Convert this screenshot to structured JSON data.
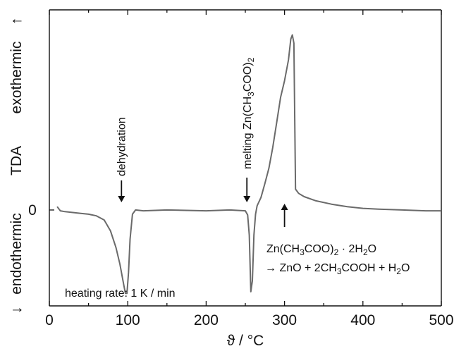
{
  "chart_data": {
    "type": "line",
    "xlabel": "ϑ / °C",
    "ylabel": "TDA",
    "ylabel_top": "exothermic",
    "ylabel_top_arrow": "↑",
    "ylabel_bottom": "endothermic",
    "ylabel_bottom_arrow": "↓",
    "xlim": [
      0,
      500
    ],
    "xticks": [
      0,
      100,
      200,
      300,
      400,
      500
    ],
    "ylim": [
      -1.15,
      2.4
    ],
    "yticks": [
      0
    ],
    "ytick_labels": [
      "0"
    ],
    "grid": false,
    "series": [
      {
        "x": [
          10,
          14,
          20,
          30,
          40,
          50,
          60,
          70,
          78,
          85,
          90,
          95,
          97,
          99,
          101,
          103,
          106,
          110,
          120,
          150,
          200,
          230,
          250,
          253,
          255,
          257,
          259,
          261,
          263,
          265,
          270,
          275,
          280,
          285,
          290,
          295,
          300,
          305,
          308,
          310,
          312,
          314,
          318,
          325,
          340,
          360,
          380,
          400,
          420,
          450,
          480,
          500
        ],
        "y": [
          0.04,
          -0.01,
          -0.02,
          -0.03,
          -0.04,
          -0.05,
          -0.07,
          -0.12,
          -0.25,
          -0.45,
          -0.65,
          -0.9,
          -1.0,
          -1.0,
          -0.75,
          -0.35,
          -0.05,
          0.0,
          -0.01,
          0.0,
          -0.01,
          0.0,
          -0.01,
          -0.06,
          -0.3,
          -0.98,
          -0.85,
          -0.3,
          -0.05,
          0.05,
          0.15,
          0.32,
          0.5,
          0.75,
          1.05,
          1.35,
          1.55,
          1.8,
          2.05,
          2.1,
          2.0,
          0.25,
          0.2,
          0.16,
          0.11,
          0.07,
          0.04,
          0.02,
          0.01,
          0.0,
          -0.01,
          -0.01
        ]
      }
    ],
    "annotations": {
      "dehydration": "dehydration",
      "melting_prefix": "melting Zn(CH",
      "melting_sub": "3",
      "melting_suffix": "COO)",
      "melting_sub2": "2",
      "reaction_line1_a": "Zn(CH",
      "reaction_line1_sub1": "3",
      "reaction_line1_b": "COO)",
      "reaction_line1_sub2": "2",
      "reaction_line1_c": " · 2H",
      "reaction_line1_sub3": "2",
      "reaction_line1_d": "O",
      "reaction_line2_a": "→ ZnO + 2CH",
      "reaction_line2_sub1": "3",
      "reaction_line2_b": "COOH + H",
      "reaction_line2_sub2": "2",
      "reaction_line2_c": "O",
      "heating_rate": "heating rate: 1 K / min"
    },
    "arrow_positions": {
      "dehydration_arrow_x": 92,
      "melting_arrow_x": 252,
      "reaction_arrow_x": 300
    }
  }
}
